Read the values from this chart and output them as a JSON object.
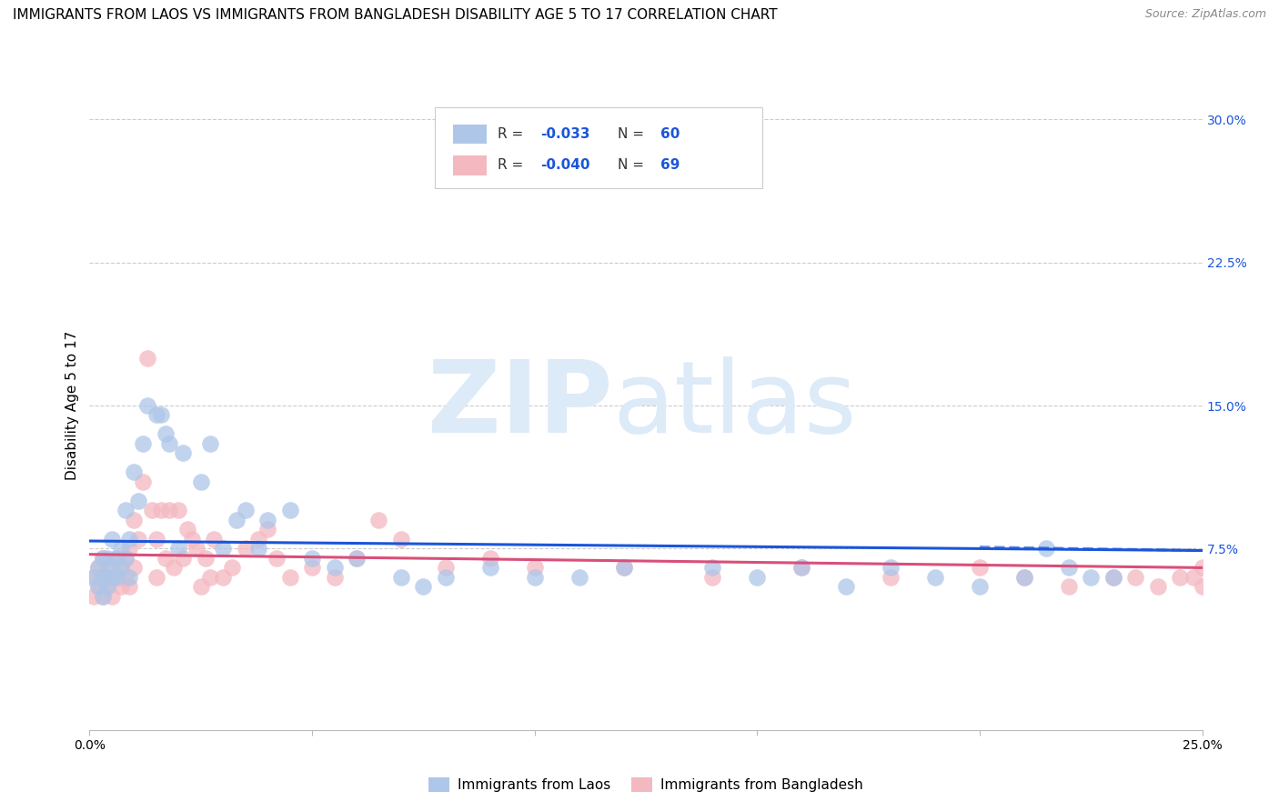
{
  "title": "IMMIGRANTS FROM LAOS VS IMMIGRANTS FROM BANGLADESH DISABILITY AGE 5 TO 17 CORRELATION CHART",
  "source": "Source: ZipAtlas.com",
  "ylabel": "Disability Age 5 to 17",
  "xlim": [
    0.0,
    0.25
  ],
  "ylim": [
    -0.02,
    0.32
  ],
  "xticks": [
    0.0,
    0.05,
    0.1,
    0.15,
    0.2,
    0.25
  ],
  "xticklabels": [
    "0.0%",
    "",
    "",
    "",
    "",
    "25.0%"
  ],
  "yticks_right": [
    0.075,
    0.15,
    0.225,
    0.3
  ],
  "ytick_labels_right": [
    "7.5%",
    "15.0%",
    "22.5%",
    "30.0%"
  ],
  "color_laos": "#aec6e8",
  "color_bangladesh": "#f4b8c1",
  "color_laos_line": "#1a56db",
  "color_bangladesh_line": "#d94f7a",
  "grid_color": "#cccccc",
  "background_color": "#ffffff",
  "title_fontsize": 11,
  "axis_label_fontsize": 11,
  "tick_fontsize": 10,
  "right_tick_color": "#1a56db",
  "laos_x": [
    0.001,
    0.002,
    0.002,
    0.003,
    0.003,
    0.003,
    0.004,
    0.004,
    0.004,
    0.005,
    0.005,
    0.005,
    0.006,
    0.006,
    0.007,
    0.007,
    0.008,
    0.008,
    0.009,
    0.009,
    0.01,
    0.011,
    0.012,
    0.013,
    0.015,
    0.016,
    0.017,
    0.018,
    0.02,
    0.021,
    0.025,
    0.027,
    0.03,
    0.033,
    0.035,
    0.038,
    0.04,
    0.045,
    0.05,
    0.055,
    0.06,
    0.07,
    0.075,
    0.08,
    0.09,
    0.1,
    0.11,
    0.12,
    0.14,
    0.15,
    0.16,
    0.17,
    0.18,
    0.19,
    0.2,
    0.21,
    0.215,
    0.22,
    0.225,
    0.23
  ],
  "laos_y": [
    0.06,
    0.055,
    0.065,
    0.05,
    0.06,
    0.07,
    0.055,
    0.06,
    0.07,
    0.06,
    0.065,
    0.08,
    0.06,
    0.07,
    0.075,
    0.065,
    0.07,
    0.095,
    0.06,
    0.08,
    0.115,
    0.1,
    0.13,
    0.15,
    0.145,
    0.145,
    0.135,
    0.13,
    0.075,
    0.125,
    0.11,
    0.13,
    0.075,
    0.09,
    0.095,
    0.075,
    0.09,
    0.095,
    0.07,
    0.065,
    0.07,
    0.06,
    0.055,
    0.06,
    0.065,
    0.06,
    0.06,
    0.065,
    0.065,
    0.06,
    0.065,
    0.055,
    0.065,
    0.06,
    0.055,
    0.06,
    0.075,
    0.065,
    0.06,
    0.06
  ],
  "bangladesh_x": [
    0.001,
    0.001,
    0.002,
    0.002,
    0.003,
    0.003,
    0.003,
    0.004,
    0.004,
    0.005,
    0.005,
    0.006,
    0.006,
    0.007,
    0.007,
    0.008,
    0.008,
    0.009,
    0.009,
    0.01,
    0.01,
    0.011,
    0.012,
    0.013,
    0.014,
    0.015,
    0.015,
    0.016,
    0.017,
    0.018,
    0.019,
    0.02,
    0.021,
    0.022,
    0.023,
    0.024,
    0.025,
    0.026,
    0.027,
    0.028,
    0.03,
    0.032,
    0.035,
    0.038,
    0.04,
    0.042,
    0.045,
    0.05,
    0.055,
    0.06,
    0.065,
    0.07,
    0.08,
    0.09,
    0.1,
    0.12,
    0.14,
    0.16,
    0.18,
    0.2,
    0.21,
    0.22,
    0.23,
    0.235,
    0.24,
    0.245,
    0.248,
    0.25,
    0.25
  ],
  "bangladesh_y": [
    0.05,
    0.06,
    0.055,
    0.065,
    0.05,
    0.06,
    0.07,
    0.055,
    0.065,
    0.05,
    0.06,
    0.06,
    0.07,
    0.055,
    0.065,
    0.06,
    0.07,
    0.075,
    0.055,
    0.065,
    0.09,
    0.08,
    0.11,
    0.175,
    0.095,
    0.08,
    0.06,
    0.095,
    0.07,
    0.095,
    0.065,
    0.095,
    0.07,
    0.085,
    0.08,
    0.075,
    0.055,
    0.07,
    0.06,
    0.08,
    0.06,
    0.065,
    0.075,
    0.08,
    0.085,
    0.07,
    0.06,
    0.065,
    0.06,
    0.07,
    0.09,
    0.08,
    0.065,
    0.07,
    0.065,
    0.065,
    0.06,
    0.065,
    0.06,
    0.065,
    0.06,
    0.055,
    0.06,
    0.06,
    0.055,
    0.06,
    0.06,
    0.055,
    0.065
  ],
  "laos_line_x": [
    0.0,
    0.25
  ],
  "laos_line_y": [
    0.079,
    0.074
  ],
  "bd_line_x": [
    0.0,
    0.25
  ],
  "bd_line_y": [
    0.072,
    0.065
  ]
}
